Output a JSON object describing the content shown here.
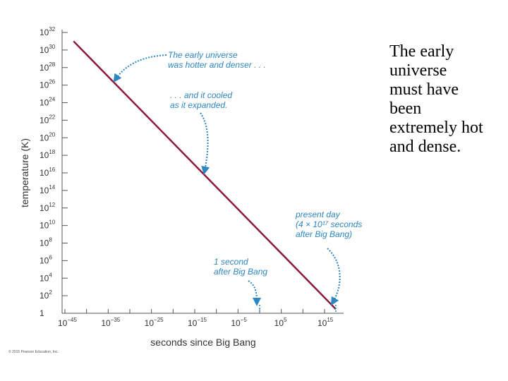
{
  "chart_data": {
    "type": "line",
    "x_scale": "log",
    "y_scale": "log",
    "xlabel": "seconds since Big Bang",
    "ylabel": "temperature (K)",
    "x_ticks": [
      {
        "base": "10",
        "exp": "−45",
        "value": -45
      },
      {
        "base": "10",
        "exp": "−35",
        "value": -35
      },
      {
        "base": "10",
        "exp": "−25",
        "value": -25
      },
      {
        "base": "10",
        "exp": "−15",
        "value": -15
      },
      {
        "base": "10",
        "exp": "−5",
        "value": -5
      },
      {
        "base": "10",
        "exp": "5",
        "value": 5
      },
      {
        "base": "10",
        "exp": "15",
        "value": 15
      }
    ],
    "y_ticks": [
      {
        "base": "1",
        "exp": "",
        "value": 0
      },
      {
        "base": "10",
        "exp": "2",
        "value": 2
      },
      {
        "base": "10",
        "exp": "4",
        "value": 4
      },
      {
        "base": "10",
        "exp": "6",
        "value": 6
      },
      {
        "base": "10",
        "exp": "8",
        "value": 8
      },
      {
        "base": "10",
        "exp": "10",
        "value": 10
      },
      {
        "base": "10",
        "exp": "12",
        "value": 12
      },
      {
        "base": "10",
        "exp": "14",
        "value": 14
      },
      {
        "base": "10",
        "exp": "16",
        "value": 16
      },
      {
        "base": "10",
        "exp": "18",
        "value": 18
      },
      {
        "base": "10",
        "exp": "20",
        "value": 20
      },
      {
        "base": "10",
        "exp": "22",
        "value": 22
      },
      {
        "base": "10",
        "exp": "24",
        "value": 24
      },
      {
        "base": "10",
        "exp": "26",
        "value": 26
      },
      {
        "base": "10",
        "exp": "28",
        "value": 28
      },
      {
        "base": "10",
        "exp": "30",
        "value": 30
      },
      {
        "base": "10",
        "exp": "32",
        "value": 32
      }
    ],
    "xlim_log10": [
      -45,
      17
    ],
    "ylim_log10": [
      0,
      32
    ],
    "series": [
      {
        "color": "#8b1a3a",
        "points": [
          {
            "x": "1e-43",
            "y": "1e31"
          },
          {
            "x": "4e17",
            "y": "3"
          }
        ]
      }
    ],
    "markers": [
      {
        "x": "1",
        "label": "1 second after Big Bang"
      },
      {
        "x": "4e17",
        "label": "present day"
      }
    ],
    "annotations": [
      {
        "lines": [
          "The early universe",
          "was hotter and denser . . ."
        ]
      },
      {
        "lines": [
          ". . . and it cooled",
          "as it expanded."
        ]
      },
      {
        "lines": [
          "present day",
          "(4 × 10¹⁷ seconds",
          "after Big Bang)"
        ]
      },
      {
        "lines": [
          "1 second",
          "after Big Bang"
        ]
      }
    ],
    "annotation_color": "#2e86c1",
    "grid": false,
    "copyright": "© 2015 Pearson Education, Inc."
  },
  "side_text": "The early\nuniverse\nmust have\nbeen\nextremely hot\nand dense."
}
